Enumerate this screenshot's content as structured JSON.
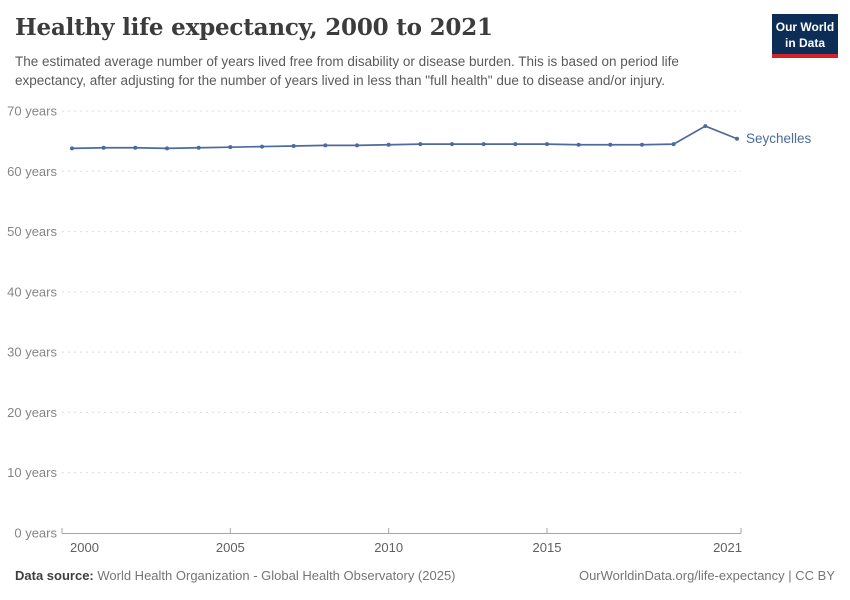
{
  "header": {
    "title": "Healthy life expectancy, 2000 to 2021",
    "subtitle": "The estimated average number of years lived free from disability or disease burden. This is based on period life expectancy, after adjusting for the number of years lived in less than \"full health\" due to disease and/or injury.",
    "logo": {
      "line1": "Our World",
      "line2": "in Data",
      "bg_color": "#0c2d56",
      "accent_color": "#d0232a"
    }
  },
  "chart_data": {
    "type": "line",
    "title": "Healthy life expectancy, 2000 to 2021",
    "x": [
      2000,
      2001,
      2002,
      2003,
      2004,
      2005,
      2006,
      2007,
      2008,
      2009,
      2010,
      2011,
      2012,
      2013,
      2014,
      2015,
      2016,
      2017,
      2018,
      2019,
      2020,
      2021
    ],
    "series": [
      {
        "name": "Seychelles",
        "color": "#4C6A9C",
        "values": [
          63.8,
          63.9,
          63.9,
          63.8,
          63.9,
          64.0,
          64.1,
          64.2,
          64.3,
          64.3,
          64.4,
          64.5,
          64.5,
          64.5,
          64.5,
          64.5,
          64.4,
          64.4,
          64.4,
          64.5,
          67.5,
          65.4
        ]
      }
    ],
    "ylim": [
      0,
      70
    ],
    "yticks": [
      0,
      10,
      20,
      30,
      40,
      50,
      60,
      70
    ],
    "ytick_suffix": " years",
    "xticks": [
      2000,
      2005,
      2010,
      2015,
      2021
    ],
    "xlabel": "",
    "ylabel": "",
    "grid": "horizontal-dashed",
    "legend_position": "entity-label-at-line-end"
  },
  "footer": {
    "datasource_label": "Data source:",
    "datasource_text": " World Health Organization - Global Health Observatory (2025)",
    "link_text": "OurWorldinData.org/life-expectancy",
    "separator": " | ",
    "license_text": "CC BY"
  }
}
